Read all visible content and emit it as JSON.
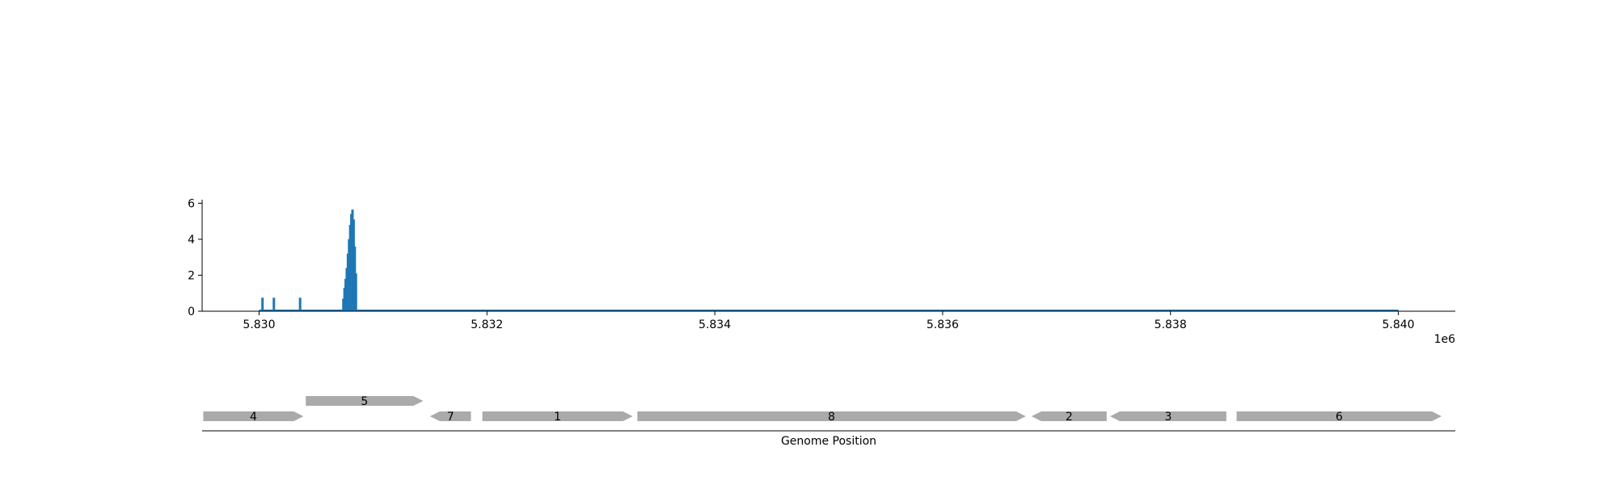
{
  "chart_data": [
    {
      "type": "bar",
      "x_offset_label": "1e6",
      "xlim": [
        5829500,
        5840500
      ],
      "ylim": [
        0,
        6.2
      ],
      "x_ticks": [
        5830000,
        5832000,
        5834000,
        5836000,
        5838000,
        5840000
      ],
      "x_tick_labels": [
        "5.830",
        "5.832",
        "5.834",
        "5.836",
        "5.838",
        "5.840"
      ],
      "y_ticks": [
        0,
        2,
        4,
        6
      ],
      "y_tick_labels": [
        "0",
        "2",
        "4",
        "6"
      ],
      "bar_color": "#1f77b4",
      "baseline": {
        "x_start": 5830000,
        "x_end": 5840000
      },
      "points": [
        {
          "x": 5830030,
          "y": 0.75
        },
        {
          "x": 5830130,
          "y": 0.75
        },
        {
          "x": 5830360,
          "y": 0.75
        },
        {
          "x": 5830740,
          "y": 0.7
        },
        {
          "x": 5830750,
          "y": 1.3
        },
        {
          "x": 5830760,
          "y": 1.8
        },
        {
          "x": 5830770,
          "y": 2.4
        },
        {
          "x": 5830780,
          "y": 3.2
        },
        {
          "x": 5830790,
          "y": 4.0
        },
        {
          "x": 5830800,
          "y": 4.8
        },
        {
          "x": 5830810,
          "y": 5.4
        },
        {
          "x": 5830820,
          "y": 5.65
        },
        {
          "x": 5830830,
          "y": 5.1
        },
        {
          "x": 5830840,
          "y": 3.6
        },
        {
          "x": 5830850,
          "y": 2.1
        }
      ]
    },
    {
      "type": "gene-track",
      "xlabel": "Genome Position",
      "xlim": [
        5829500,
        5840500
      ],
      "feature_color": "#aaaaaa",
      "genes": [
        {
          "label": "4",
          "start": 5829510,
          "end": 5830390,
          "strand": "+",
          "row": 0
        },
        {
          "label": "5",
          "start": 5830410,
          "end": 5831440,
          "strand": "+",
          "row": 1
        },
        {
          "label": "7",
          "start": 5831500,
          "end": 5831860,
          "strand": "-",
          "row": 0
        },
        {
          "label": "1",
          "start": 5831960,
          "end": 5833280,
          "strand": "+",
          "row": 0
        },
        {
          "label": "8",
          "start": 5833320,
          "end": 5836730,
          "strand": "+",
          "row": 0
        },
        {
          "label": "2",
          "start": 5836780,
          "end": 5837440,
          "strand": "-",
          "row": 0
        },
        {
          "label": "3",
          "start": 5837470,
          "end": 5838490,
          "strand": "-",
          "row": 0
        },
        {
          "label": "6",
          "start": 5838580,
          "end": 5840380,
          "strand": "+",
          "row": 0
        }
      ]
    }
  ]
}
